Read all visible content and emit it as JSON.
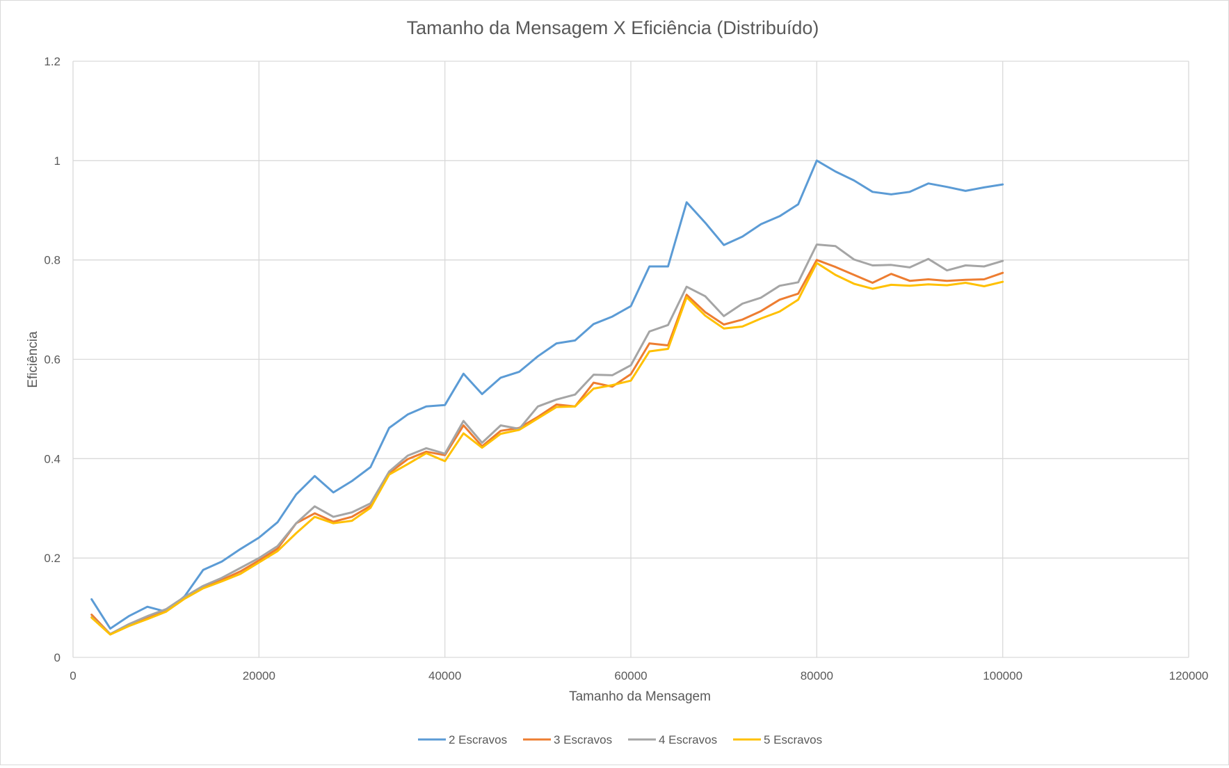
{
  "chart_data": {
    "type": "line",
    "title": "Tamanho da Mensagem X Eficiência (Distribuído)",
    "xlabel": "Tamanho da Mensagem",
    "ylabel": "Eficiência",
    "xlim": [
      0,
      120000
    ],
    "ylim": [
      0,
      1.2
    ],
    "x_ticks": [
      "0",
      "20000",
      "40000",
      "60000",
      "80000",
      "100000",
      "120000"
    ],
    "y_ticks": [
      "0",
      "0.2",
      "0.4",
      "0.6",
      "0.8",
      "1",
      "1.2"
    ],
    "grid": true,
    "legend_position": "bottom",
    "x": [
      2000,
      4000,
      6000,
      8000,
      10000,
      12000,
      14000,
      16000,
      18000,
      20000,
      22000,
      24000,
      26000,
      28000,
      30000,
      32000,
      34000,
      36000,
      38000,
      40000,
      42000,
      44000,
      46000,
      48000,
      50000,
      52000,
      54000,
      56000,
      58000,
      60000,
      62000,
      64000,
      66000,
      68000,
      70000,
      72000,
      74000,
      76000,
      78000,
      80000,
      82000,
      84000,
      86000,
      88000,
      90000,
      92000,
      94000,
      96000,
      98000,
      100000
    ],
    "series": [
      {
        "name": "2 Escravos",
        "color": "#5b9bd5",
        "values": [
          0.117,
          0.058,
          0.083,
          0.102,
          0.092,
          0.123,
          0.176,
          0.193,
          0.218,
          0.241,
          0.272,
          0.328,
          0.365,
          0.332,
          0.355,
          0.383,
          0.462,
          0.489,
          0.505,
          0.508,
          0.571,
          0.53,
          0.563,
          0.575,
          0.606,
          0.632,
          0.638,
          0.671,
          0.686,
          0.707,
          0.787,
          0.787,
          0.916,
          0.875,
          0.83,
          0.847,
          0.872,
          0.888,
          0.912,
          1.0,
          0.978,
          0.96,
          0.937,
          0.932,
          0.937,
          0.954,
          0.947,
          0.939,
          0.946,
          0.952
        ]
      },
      {
        "name": "3 Escravos",
        "color": "#ed7d31",
        "values": [
          0.086,
          0.047,
          0.066,
          0.081,
          0.095,
          0.12,
          0.142,
          0.156,
          0.173,
          0.195,
          0.219,
          0.27,
          0.29,
          0.273,
          0.283,
          0.305,
          0.371,
          0.399,
          0.414,
          0.407,
          0.467,
          0.425,
          0.456,
          0.462,
          0.484,
          0.509,
          0.505,
          0.553,
          0.545,
          0.57,
          0.632,
          0.628,
          0.73,
          0.695,
          0.67,
          0.68,
          0.697,
          0.72,
          0.732,
          0.8,
          0.786,
          0.77,
          0.754,
          0.772,
          0.758,
          0.761,
          0.758,
          0.76,
          0.761,
          0.774
        ]
      },
      {
        "name": "4 Escravos",
        "color": "#a5a5a5",
        "values": [
          0.081,
          0.047,
          0.067,
          0.083,
          0.097,
          0.122,
          0.144,
          0.16,
          0.18,
          0.2,
          0.224,
          0.27,
          0.304,
          0.283,
          0.292,
          0.31,
          0.374,
          0.406,
          0.421,
          0.41,
          0.476,
          0.432,
          0.467,
          0.46,
          0.505,
          0.519,
          0.529,
          0.569,
          0.568,
          0.588,
          0.656,
          0.669,
          0.746,
          0.727,
          0.687,
          0.712,
          0.724,
          0.748,
          0.755,
          0.831,
          0.828,
          0.801,
          0.789,
          0.79,
          0.785,
          0.802,
          0.779,
          0.789,
          0.787,
          0.798
        ]
      },
      {
        "name": "5 Escravos",
        "color": "#ffc000",
        "values": [
          0.08,
          0.046,
          0.063,
          0.077,
          0.092,
          0.118,
          0.139,
          0.153,
          0.168,
          0.191,
          0.214,
          0.25,
          0.283,
          0.27,
          0.275,
          0.301,
          0.368,
          0.389,
          0.411,
          0.395,
          0.451,
          0.422,
          0.45,
          0.458,
          0.481,
          0.504,
          0.505,
          0.541,
          0.548,
          0.557,
          0.616,
          0.621,
          0.725,
          0.688,
          0.662,
          0.666,
          0.682,
          0.696,
          0.72,
          0.794,
          0.77,
          0.752,
          0.742,
          0.75,
          0.748,
          0.751,
          0.749,
          0.754,
          0.747,
          0.756
        ]
      }
    ]
  }
}
